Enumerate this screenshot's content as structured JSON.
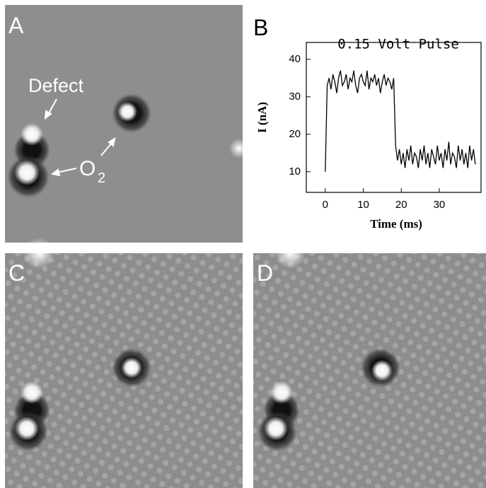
{
  "panels": {
    "a": "A",
    "b": "B",
    "c": "C",
    "d": "D"
  },
  "annotations": {
    "defect": "Defect",
    "o2": {
      "text": "O",
      "subscript": "2"
    }
  },
  "chart_data": {
    "type": "line",
    "title": "0.15 Volt Pulse",
    "x_label": "Time (ms)",
    "y_label": "I (nA)",
    "xlim": [
      -5,
      41
    ],
    "ylim": [
      4.5,
      44.5
    ],
    "xticks": [
      0,
      10,
      20,
      30
    ],
    "yticks": [
      10,
      20,
      30,
      40
    ],
    "x": [
      0,
      0.5,
      1,
      1.5,
      2,
      2.5,
      3,
      3.5,
      4,
      4.5,
      5,
      5.5,
      6,
      6.5,
      7,
      7.5,
      8,
      8.5,
      9,
      9.5,
      10,
      10.5,
      11,
      11.5,
      12,
      12.5,
      13,
      13.5,
      14,
      14.5,
      15,
      15.5,
      16,
      16.5,
      17,
      17.5,
      18,
      18.5,
      19,
      19.5,
      20,
      20.5,
      21,
      21.5,
      22,
      22.5,
      23,
      23.5,
      24,
      24.5,
      25,
      25.5,
      26,
      26.5,
      27,
      27.5,
      28,
      28.5,
      29,
      29.5,
      30,
      30.5,
      31,
      31.5,
      32,
      32.5,
      33,
      33.5,
      34,
      34.5,
      35,
      35.5,
      36,
      36.5,
      37,
      37.5,
      38,
      38.5,
      39,
      39.5
    ],
    "series": [
      {
        "color": "#000000",
        "values": [
          10,
          33,
          35,
          32,
          36,
          34,
          31,
          35,
          37,
          33,
          34,
          36,
          32,
          35,
          34,
          37,
          33,
          31,
          35,
          36,
          34,
          33,
          37,
          32,
          35,
          34,
          36,
          33,
          35,
          31,
          34,
          36,
          33,
          35,
          34,
          32,
          35,
          17,
          13,
          16,
          12,
          15,
          11,
          16,
          13,
          17,
          12,
          15,
          14,
          11,
          16,
          13,
          17,
          12,
          15,
          11,
          16,
          14,
          12,
          17,
          13,
          15,
          11,
          16,
          13,
          18,
          12,
          15,
          14,
          11,
          17,
          13,
          16,
          12,
          15,
          11,
          17,
          13,
          16,
          12
        ]
      }
    ]
  }
}
